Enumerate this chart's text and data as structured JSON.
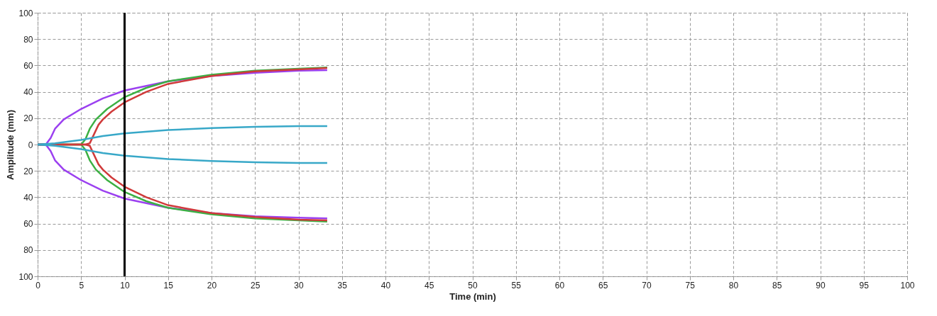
{
  "chart_data": {
    "type": "line",
    "xlabel": "Time (min)",
    "ylabel": "Amplitude (mm)",
    "xlim": [
      0,
      100
    ],
    "ylim": [
      -100,
      100
    ],
    "xticks": [
      0,
      5,
      10,
      15,
      20,
      25,
      30,
      35,
      40,
      45,
      50,
      55,
      60,
      65,
      70,
      75,
      80,
      85,
      90,
      95,
      100
    ],
    "yticks": [
      {
        "value": -100,
        "label": "100"
      },
      {
        "value": -80,
        "label": "80"
      },
      {
        "value": -60,
        "label": "60"
      },
      {
        "value": -40,
        "label": "40"
      },
      {
        "value": -20,
        "label": "20"
      },
      0,
      20,
      40,
      60,
      80,
      100
    ],
    "grid": true,
    "marker": "none",
    "line_style": "solid",
    "legend": false,
    "ref_lines": [
      {
        "axis": "x",
        "value": 10,
        "color": "#000000"
      }
    ],
    "series": [
      {
        "color": "#9b40f0",
        "x": [
          0,
          1,
          1.5,
          2,
          3,
          5,
          7.5,
          10,
          15,
          20,
          25,
          30,
          33.3
        ],
        "values": [
          0,
          0.5,
          5,
          12,
          19,
          27,
          35,
          41,
          48,
          52,
          54.5,
          56,
          56.5
        ]
      },
      {
        "color": "#9b40f0",
        "x": [
          0,
          1,
          1.5,
          2,
          3,
          5,
          7.5,
          10,
          15,
          20,
          25,
          30,
          33.3
        ],
        "values": [
          0,
          -0.5,
          -5,
          -12,
          -19,
          -27,
          -35,
          -41,
          -48,
          -52,
          -54.5,
          -55.5,
          -56
        ]
      },
      {
        "color": "#3cb043",
        "x": [
          0,
          5,
          5.5,
          6,
          6.7,
          8,
          10,
          12.5,
          15,
          20,
          25,
          30,
          33.3
        ],
        "values": [
          0,
          0,
          4,
          12,
          19,
          27,
          36,
          43,
          48,
          53,
          56,
          57.5,
          58.5
        ]
      },
      {
        "color": "#3cb043",
        "x": [
          0,
          5,
          5.5,
          6,
          6.7,
          8,
          10,
          12.5,
          15,
          20,
          25,
          30,
          33.3
        ],
        "values": [
          0,
          0,
          -4,
          -12,
          -19,
          -27,
          -36,
          -43,
          -48,
          -53,
          -56,
          -57.5,
          -58.5
        ]
      },
      {
        "color": "#d03a3a",
        "x": [
          0,
          5.5,
          6,
          6.5,
          7,
          7.5,
          8.5,
          10,
          12.5,
          15,
          20,
          25,
          30,
          33.3
        ],
        "values": [
          0,
          0,
          1,
          8,
          15,
          19,
          25,
          32,
          40,
          46,
          52,
          55.5,
          57,
          58
        ]
      },
      {
        "color": "#d03a3a",
        "x": [
          0,
          5.5,
          6,
          6.5,
          7,
          7.5,
          8.5,
          10,
          12.5,
          15,
          20,
          25,
          30,
          33.3
        ],
        "values": [
          0,
          0,
          -1,
          -8,
          -15,
          -19,
          -25,
          -32,
          -40,
          -46,
          -52,
          -55,
          -57,
          -57.5
        ]
      },
      {
        "color": "#38a8c8",
        "x": [
          0,
          2,
          5,
          7.5,
          10,
          15,
          20,
          25,
          30,
          33.3
        ],
        "values": [
          0,
          1,
          3.5,
          6.5,
          8.5,
          11,
          12.5,
          13.5,
          14,
          14
        ]
      },
      {
        "color": "#38a8c8",
        "x": [
          0,
          2,
          5,
          7.5,
          10,
          15,
          20,
          25,
          30,
          33.3
        ],
        "values": [
          0,
          -1,
          -3.5,
          -6.5,
          -8.5,
          -11,
          -12.5,
          -13.5,
          -14,
          -14
        ]
      }
    ]
  }
}
